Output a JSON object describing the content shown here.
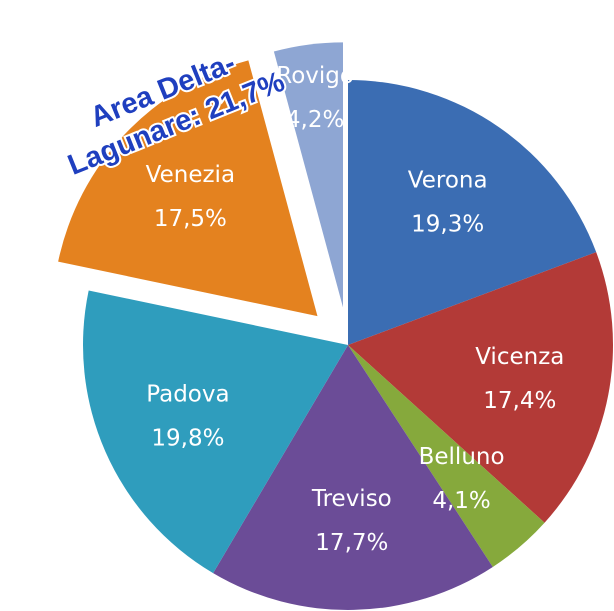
{
  "chart_data": {
    "type": "pie",
    "categories": [
      "Verona",
      "Vicenza",
      "Belluno",
      "Treviso",
      "Padova",
      "Venezia",
      "Rovigo"
    ],
    "values": [
      19.3,
      17.4,
      4.1,
      17.7,
      19.8,
      17.5,
      4.2
    ],
    "value_labels": [
      "19,3%",
      "17,4%",
      "4,1%",
      "17,7%",
      "19,8%",
      "17,5%",
      "4,2%"
    ],
    "colors": [
      "#3b6db3",
      "#b33a37",
      "#86a93c",
      "#6b4c97",
      "#2f9dbd",
      "#e4821f",
      "#8ea6d3"
    ],
    "annotation": [
      "Area Delta-",
      "Lagunare: 21,7%"
    ]
  }
}
